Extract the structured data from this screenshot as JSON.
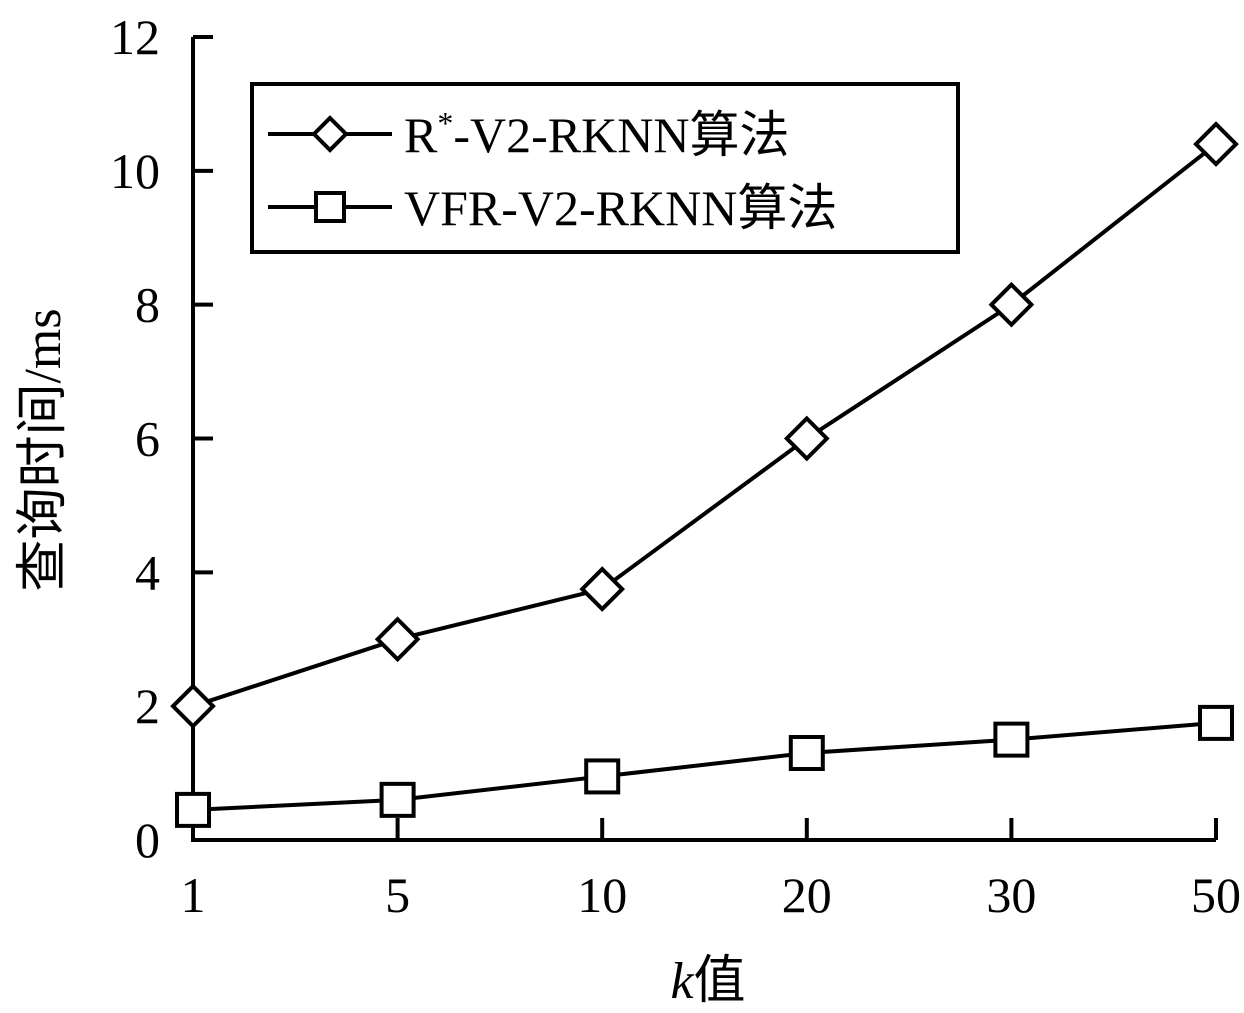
{
  "chart_data": {
    "type": "line",
    "title": "",
    "xlabel": "k值",
    "xlabel_italic_part": "k",
    "xlabel_rest": "值",
    "ylabel": "查询时间/ms",
    "categories": [
      "1",
      "5",
      "10",
      "20",
      "30",
      "50"
    ],
    "ylim": [
      0,
      12
    ],
    "yticks": [
      0,
      2,
      4,
      6,
      8,
      10,
      12
    ],
    "yticks_labels": [
      "0",
      "2",
      "4",
      "6",
      "8",
      "10",
      "12"
    ],
    "grid": false,
    "legend_position": "top-left",
    "series": [
      {
        "name": "R*-V2-RKNN算法",
        "name_base": "R",
        "name_sup": "*",
        "name_rest": "-V2-RKNN算法",
        "marker": "diamond",
        "values": [
          2.0,
          3.0,
          3.75,
          6.0,
          8.0,
          10.4
        ]
      },
      {
        "name": "VFR-V2-RKNN算法",
        "marker": "square",
        "values": [
          0.45,
          0.6,
          0.95,
          1.3,
          1.5,
          1.75
        ]
      }
    ],
    "colors": {
      "line": "#000000",
      "background": "#ffffff"
    }
  }
}
